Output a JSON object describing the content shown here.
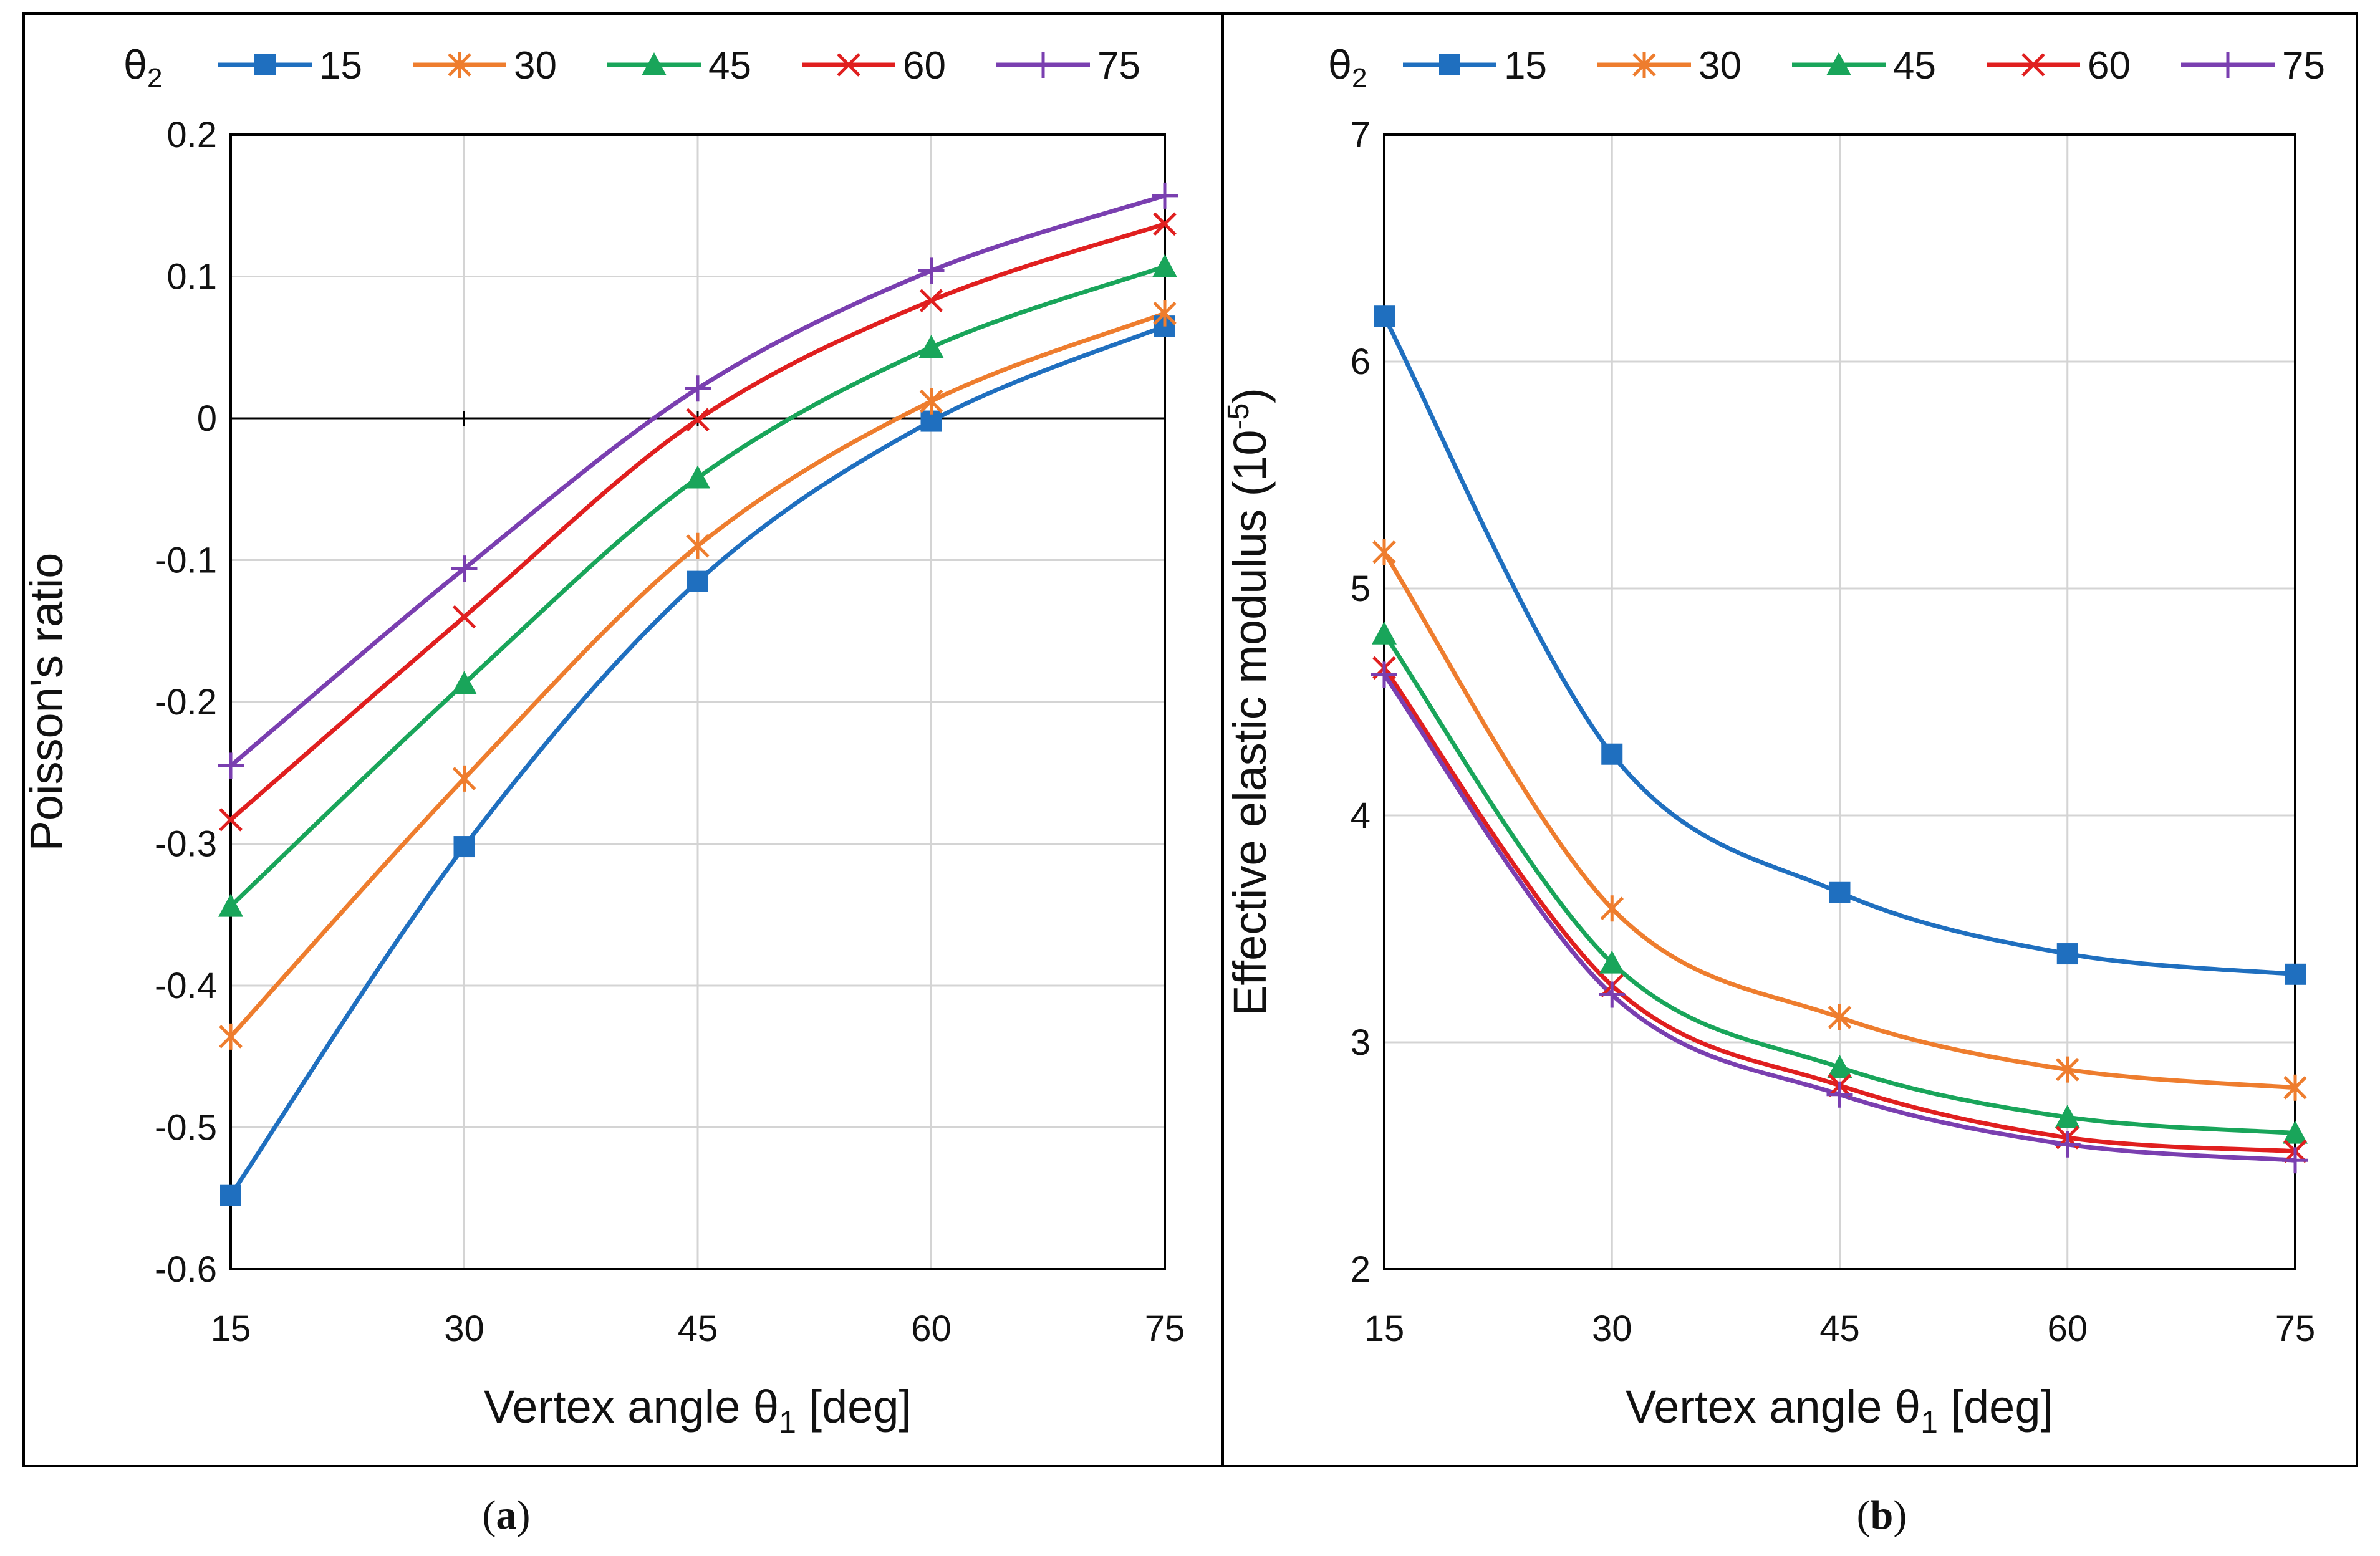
{
  "legend": {
    "title_symbol": "θ",
    "title_subscript": "2"
  },
  "series_style": [
    {
      "name": "15",
      "color": "#1F6FBF",
      "marker": "square"
    },
    {
      "name": "30",
      "color": "#EE7D2E",
      "marker": "asterisk"
    },
    {
      "name": "45",
      "color": "#19A55A",
      "marker": "triangle"
    },
    {
      "name": "60",
      "color": "#E01F1F",
      "marker": "x"
    },
    {
      "name": "75",
      "color": "#7A3FB0",
      "marker": "plus"
    }
  ],
  "chart_data": [
    {
      "type": "line",
      "panel_label": "a",
      "xlabel": "Vertex angle θ1 [deg]",
      "xlabel_main": "Vertex angle θ",
      "xlabel_sub": "1",
      "xlabel_unit": " [deg]",
      "ylabel": "Poisson's ratio",
      "x": [
        15,
        30,
        45,
        60,
        75
      ],
      "x_ticks": [
        "15",
        "30",
        "45",
        "60",
        "75"
      ],
      "ylim": [
        -0.6,
        0.2
      ],
      "y_ticks": [
        "0.2",
        "0.1",
        "0",
        "-0.1",
        "-0.2",
        "-0.3",
        "-0.4",
        "-0.5",
        "-0.6"
      ],
      "y_tick_values": [
        0.2,
        0.1,
        0,
        -0.1,
        -0.2,
        -0.3,
        -0.4,
        -0.5,
        -0.6
      ],
      "zero_line": true,
      "grid": true,
      "series": [
        {
          "name": "15",
          "values": [
            -0.548,
            -0.302,
            -0.115,
            -0.002,
            0.065
          ]
        },
        {
          "name": "30",
          "values": [
            -0.436,
            -0.254,
            -0.09,
            0.012,
            0.074
          ]
        },
        {
          "name": "45",
          "values": [
            -0.344,
            -0.187,
            -0.042,
            0.05,
            0.107
          ]
        },
        {
          "name": "60",
          "values": [
            -0.283,
            -0.14,
            -0.001,
            0.083,
            0.137
          ]
        },
        {
          "name": "75",
          "values": [
            -0.245,
            -0.106,
            0.021,
            0.104,
            0.157
          ]
        }
      ]
    },
    {
      "type": "line",
      "panel_label": "b",
      "xlabel": "Vertex angle θ1 [deg]",
      "xlabel_main": "Vertex angle θ",
      "xlabel_sub": "1",
      "xlabel_unit": " [deg]",
      "ylabel": "Effective elastic modulus (10-5)",
      "ylabel_main": "Effective elastic modulus (10",
      "ylabel_sup": "-5",
      "ylabel_end": ")",
      "x": [
        15,
        30,
        45,
        60,
        75
      ],
      "x_ticks": [
        "15",
        "30",
        "45",
        "60",
        "75"
      ],
      "ylim": [
        2,
        7
      ],
      "y_ticks": [
        "7",
        "6",
        "5",
        "4",
        "3",
        "2"
      ],
      "y_tick_values": [
        7,
        6,
        5,
        4,
        3,
        2
      ],
      "zero_line": false,
      "grid": true,
      "series": [
        {
          "name": "15",
          "values": [
            6.2,
            4.27,
            3.66,
            3.39,
            3.3
          ]
        },
        {
          "name": "30",
          "values": [
            5.16,
            3.59,
            3.11,
            2.88,
            2.8
          ]
        },
        {
          "name": "45",
          "values": [
            4.8,
            3.35,
            2.89,
            2.67,
            2.6
          ]
        },
        {
          "name": "60",
          "values": [
            4.65,
            3.25,
            2.81,
            2.58,
            2.52
          ]
        },
        {
          "name": "75",
          "values": [
            4.62,
            3.21,
            2.77,
            2.55,
            2.48
          ]
        }
      ]
    }
  ]
}
